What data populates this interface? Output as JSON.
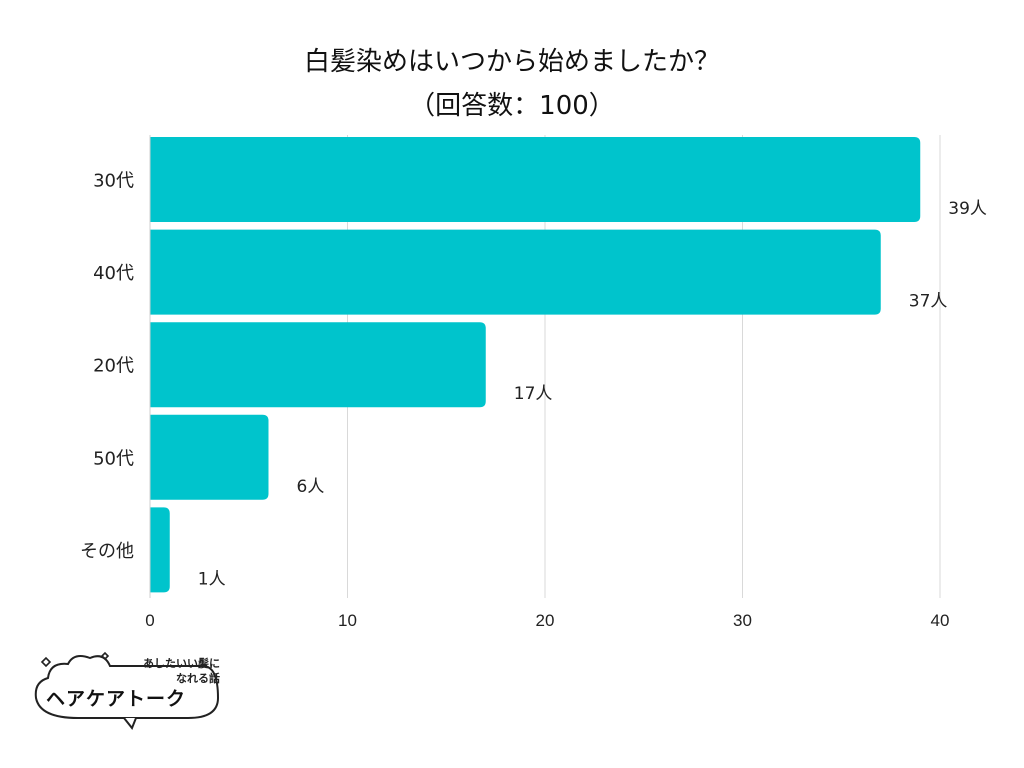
{
  "title": {
    "line1": "白髪染めはいつから始めましたか？",
    "line2": "（回答数：100）"
  },
  "chart_data": {
    "type": "bar",
    "orientation": "horizontal",
    "categories": [
      "30代",
      "40代",
      "20代",
      "50代",
      "その他"
    ],
    "values": [
      39,
      37,
      17,
      6,
      1
    ],
    "value_labels": [
      "39人",
      "37人",
      "17人",
      "6人",
      "1人"
    ],
    "xlim": [
      0,
      40
    ],
    "xticks": [
      0,
      10,
      20,
      30,
      40
    ],
    "grid": true,
    "color": "#00c4cc"
  },
  "logo": {
    "tagline_1": "あしたいい髪に",
    "tagline_2": "なれる話",
    "name": "ヘアケアトーク"
  }
}
